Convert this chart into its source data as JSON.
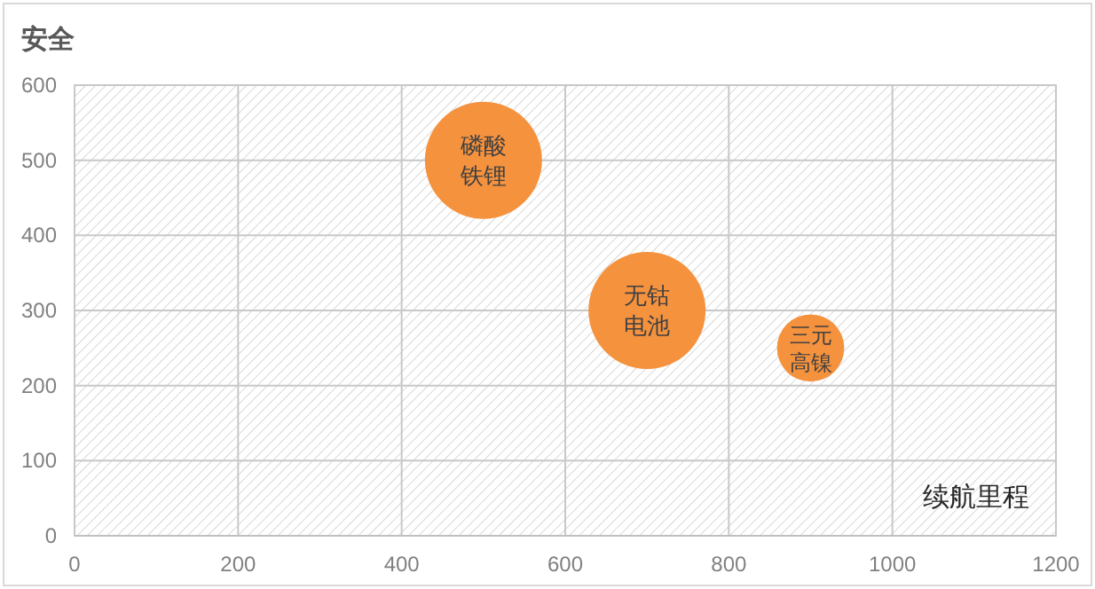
{
  "chart_data": {
    "type": "bubble",
    "ylabel": "安全",
    "xlabel": "续航里程",
    "xlim": [
      0,
      1200
    ],
    "ylim": [
      0,
      600
    ],
    "xticks": [
      0,
      200,
      400,
      600,
      800,
      1000,
      1200
    ],
    "yticks": [
      0,
      100,
      200,
      300,
      400,
      500,
      600
    ],
    "grid": true,
    "series": [
      {
        "name": "磷酸铁锂",
        "color": "#f5923e",
        "x": [
          500
        ],
        "values": [
          500
        ],
        "sizes": [
          1
        ]
      },
      {
        "name": "无钴电池",
        "color": "#f5923e",
        "x": [
          700
        ],
        "values": [
          300
        ],
        "sizes": [
          1
        ]
      },
      {
        "name": "三元高镍",
        "color": "#f5923e",
        "x": [
          900
        ],
        "values": [
          250
        ],
        "sizes": [
          0.33
        ]
      }
    ]
  }
}
